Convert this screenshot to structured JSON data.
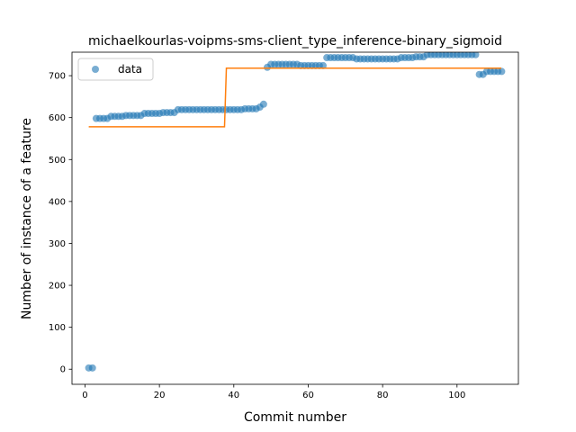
{
  "chart_data": {
    "type": "scatter",
    "title": "michaelkourlas-voipms-sms-client_type_inference-binary_sigmoid",
    "xlabel": "Commit number",
    "ylabel": "Number of instance of a feature",
    "xlim": [
      -3.5,
      116.5
    ],
    "ylim": [
      -36,
      756
    ],
    "xticks": [
      0,
      20,
      40,
      60,
      80,
      100
    ],
    "yticks": [
      0,
      100,
      200,
      300,
      400,
      500,
      600,
      700
    ],
    "legend": {
      "position": "top-left",
      "entries": [
        "data"
      ]
    },
    "colors": {
      "data": "#1f77b4",
      "fit": "#ff7f0e"
    },
    "series": [
      {
        "name": "data",
        "kind": "scatter",
        "x": [
          1,
          2,
          3,
          4,
          5,
          6,
          7,
          8,
          9,
          10,
          11,
          12,
          13,
          14,
          15,
          16,
          17,
          18,
          19,
          20,
          21,
          22,
          23,
          24,
          25,
          26,
          27,
          28,
          29,
          30,
          31,
          32,
          33,
          34,
          35,
          36,
          37,
          38,
          39,
          40,
          41,
          42,
          43,
          44,
          45,
          46,
          47,
          48,
          49,
          50,
          51,
          52,
          53,
          54,
          55,
          56,
          57,
          58,
          59,
          60,
          61,
          62,
          63,
          64,
          65,
          66,
          67,
          68,
          69,
          70,
          71,
          72,
          73,
          74,
          75,
          76,
          77,
          78,
          79,
          80,
          81,
          82,
          83,
          84,
          85,
          86,
          87,
          88,
          89,
          90,
          91,
          92,
          93,
          94,
          95,
          96,
          97,
          98,
          99,
          100,
          101,
          102,
          103,
          104,
          105,
          106,
          107,
          108,
          109,
          110,
          111,
          112
        ],
        "y": [
          3,
          3,
          598,
          598,
          598,
          598,
          603,
          603,
          603,
          603,
          605,
          605,
          605,
          605,
          605,
          610,
          610,
          610,
          610,
          610,
          612,
          612,
          612,
          612,
          619,
          619,
          619,
          619,
          619,
          619,
          619,
          619,
          619,
          619,
          619,
          619,
          619,
          619,
          619,
          619,
          619,
          619,
          621,
          621,
          621,
          621,
          625,
          632,
          720,
          727,
          727,
          727,
          727,
          727,
          727,
          727,
          727,
          724,
          724,
          724,
          724,
          724,
          724,
          724,
          743,
          743,
          743,
          743,
          743,
          743,
          743,
          743,
          740,
          740,
          740,
          740,
          740,
          740,
          740,
          740,
          740,
          740,
          740,
          740,
          743,
          743,
          743,
          743,
          745,
          745,
          745,
          750,
          750,
          750,
          750,
          750,
          750,
          750,
          750,
          750,
          750,
          750,
          750,
          750,
          750,
          703,
          703,
          710,
          710,
          710,
          710,
          710
        ]
      },
      {
        "name": "",
        "kind": "step",
        "x": [
          1,
          37.5,
          38,
          111.9
        ],
        "y": [
          578,
          578,
          718,
          718
        ]
      }
    ]
  }
}
